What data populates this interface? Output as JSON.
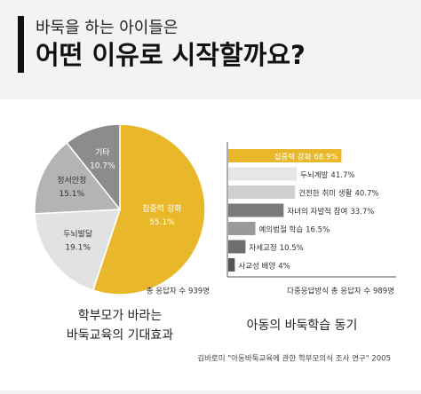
{
  "header": {
    "subtitle": "바둑을 하는 아이들은",
    "title": "어떤 이유로 시작할까요?"
  },
  "chart_data": [
    {
      "type": "pie",
      "categories": [
        "집중력 강화",
        "두뇌발달",
        "정서안정",
        "기타"
      ],
      "values": [
        55.1,
        19.1,
        15.1,
        10.7
      ],
      "value_labels": [
        "55.1%",
        "19.1%",
        "15.1%",
        "10.7%"
      ],
      "colors": [
        "#e8b82a",
        "#e2e2e2",
        "#b4b4b4",
        "#8c8c8c"
      ],
      "note": "총 응답자 수 939명",
      "caption": [
        "학부모가 바라는",
        "바둑교육의 기대효과"
      ]
    },
    {
      "type": "hbar",
      "categories": [
        "집중력 강화",
        "두뇌계발",
        "건전한 취미 생활",
        "자녀의 자발적 참여",
        "예의범절 학습",
        "자세교정",
        "사교성 배양"
      ],
      "values": [
        68.9,
        41.7,
        40.7,
        33.7,
        16.5,
        10.5,
        4
      ],
      "value_labels": [
        "68.9%",
        "41.7%",
        "40.7%",
        "33.7%",
        "16.5%",
        "10.5%",
        "4%"
      ],
      "colors": [
        "#e8b82a",
        "#e6e6e6",
        "#d0d0d0",
        "#7a7a7a",
        "#9a9a9a",
        "#6e6e6e",
        "#555555"
      ],
      "note": "다중응답방식 총 응답자 수 989명",
      "caption": [
        "아동의 바둑학습 동기"
      ]
    }
  ],
  "source": "김바로미 \"아동바둑교육에 관한 학부모의식 조사 연구\" 2005"
}
